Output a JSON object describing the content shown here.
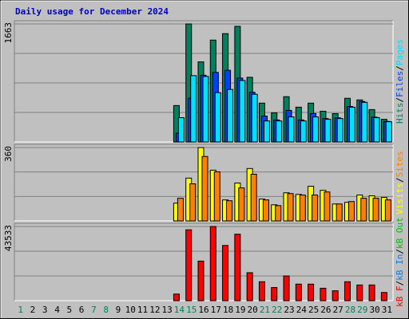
{
  "chart_data": [
    {
      "type": "bar",
      "title": "Daily usage for December 2024",
      "categories": [
        "1",
        "2",
        "3",
        "4",
        "5",
        "6",
        "7",
        "8",
        "9",
        "10",
        "11",
        "12",
        "13",
        "14",
        "15",
        "16",
        "17",
        "18",
        "19",
        "20",
        "21",
        "22",
        "23",
        "24",
        "25",
        "26",
        "27",
        "28",
        "29",
        "30",
        "31"
      ],
      "category_colors": [
        "#00805c",
        "#000000",
        "#000000",
        "#000000",
        "#000000",
        "#000000",
        "#00805c",
        "#00805c",
        "#000000",
        "#000000",
        "#000000",
        "#000000",
        "#000000",
        "#00805c",
        "#00805c",
        "#000000",
        "#000000",
        "#000000",
        "#000000",
        "#000000",
        "#00805c",
        "#00805c",
        "#000000",
        "#000000",
        "#000000",
        "#000000",
        "#000000",
        "#00805c",
        "#00805c",
        "#000000",
        "#000000"
      ],
      "legend_separator": "/",
      "ylim": [
        0,
        1663
      ],
      "yticks": [
        1663
      ],
      "series": [
        {
          "name": "Hits",
          "color": "#00805c",
          "values": [
            0,
            0,
            0,
            0,
            0,
            0,
            0,
            0,
            0,
            0,
            0,
            0,
            0,
            513,
            1663,
            1128,
            1435,
            1526,
            1629,
            911,
            547,
            410,
            638,
            490,
            547,
            433,
            399,
            615,
            592,
            456,
            319
          ]
        },
        {
          "name": "Files",
          "color": "#0040ff",
          "values": [
            0,
            0,
            0,
            0,
            0,
            0,
            0,
            0,
            0,
            0,
            0,
            0,
            0,
            125,
            615,
            940,
            980,
            1010,
            900,
            700,
            364,
            310,
            445,
            310,
            400,
            330,
            340,
            500,
            570,
            350,
            290
          ]
        },
        {
          "name": "Pages",
          "color": "#00e0ff",
          "values": [
            0,
            0,
            0,
            0,
            0,
            0,
            0,
            0,
            0,
            0,
            0,
            0,
            0,
            342,
            934,
            923,
            695,
            740,
            866,
            672,
            296,
            296,
            353,
            296,
            353,
            319,
            330,
            490,
            558,
            342,
            285
          ]
        }
      ]
    },
    {
      "type": "bar",
      "ylim": [
        0,
        360
      ],
      "yticks": [
        360
      ],
      "series": [
        {
          "name": "Visits",
          "color": "#ffff00",
          "values": [
            0,
            0,
            0,
            0,
            0,
            0,
            0,
            0,
            0,
            0,
            0,
            0,
            0,
            87,
            210,
            360,
            249,
            103,
            186,
            257,
            107,
            79,
            138,
            130,
            170,
            150,
            83,
            91,
            127,
            123,
            115
          ]
        },
        {
          "name": "Sites",
          "color": "#ff8000",
          "values": [
            0,
            0,
            0,
            0,
            0,
            0,
            0,
            0,
            0,
            0,
            0,
            0,
            0,
            111,
            182,
            316,
            241,
            99,
            162,
            229,
            103,
            75,
            134,
            127,
            127,
            142,
            83,
            95,
            111,
            111,
            103
          ]
        }
      ]
    },
    {
      "type": "bar",
      "ylim": [
        0,
        43533
      ],
      "yticks": [
        43533
      ],
      "series": [
        {
          "name": "kB F",
          "color": "#ff0000",
          "values": [
            0,
            0,
            0,
            0,
            0,
            0,
            0,
            0,
            0,
            0,
            0,
            0,
            0,
            3870,
            41600,
            23220,
            43533,
            32400,
            39000,
            16400,
            11100,
            7700,
            14500,
            9700,
            9700,
            7300,
            5800,
            11100,
            9200,
            9200,
            4800
          ]
        },
        {
          "name": "kB In",
          "color": "#0080ff",
          "values": [
            0,
            0,
            0,
            0,
            0,
            0,
            0,
            0,
            0,
            0,
            0,
            0,
            0,
            0,
            0,
            0,
            0,
            0,
            0,
            0,
            0,
            0,
            0,
            0,
            0,
            0,
            0,
            0,
            0,
            0,
            0
          ]
        },
        {
          "name": "kB Out",
          "color": "#00c000",
          "values": [
            0,
            0,
            0,
            0,
            0,
            0,
            0,
            0,
            0,
            0,
            0,
            0,
            0,
            0,
            0,
            0,
            0,
            0,
            0,
            0,
            0,
            0,
            0,
            0,
            0,
            0,
            0,
            0,
            0,
            0,
            0
          ]
        }
      ]
    }
  ]
}
